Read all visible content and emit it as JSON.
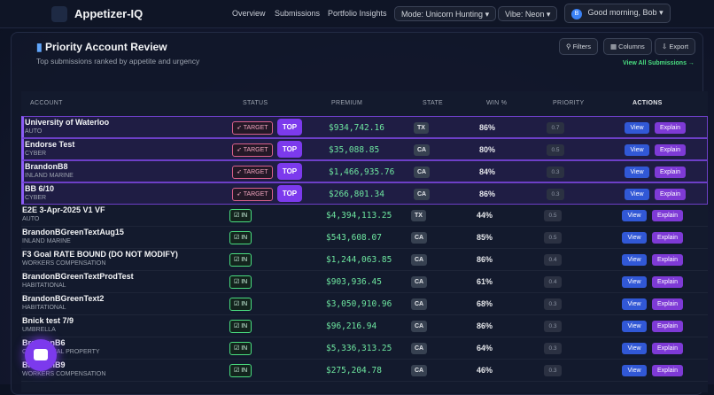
{
  "header": {
    "brand": "Appetizer-IQ",
    "nav": [
      "Overview",
      "Submissions",
      "Portfolio Insights"
    ],
    "mode": "Mode: Unicorn Hunting",
    "vibe": "Vibe: Neon",
    "avatar": "B",
    "greeting": "Good morning, Bob"
  },
  "panel": {
    "title": "Priority Account Review",
    "subtitle": "Top submissions ranked by appetite and urgency",
    "buttons": [
      "Filters",
      "Columns",
      "Export"
    ],
    "link": "View All Submissions →"
  },
  "table": {
    "columns": [
      "ACCOUNT",
      "STATUS",
      "PREMIUM",
      "STATE",
      "WIN %",
      "PRIORITY",
      "ACTIONS"
    ],
    "actions": [
      "View",
      "Explain"
    ],
    "rows": [
      {
        "account": "University of Waterloo",
        "line": "AUTO",
        "status": "TARGET",
        "flag": "TOP",
        "premium": "$934,742.16",
        "state": "TX",
        "win": "86%",
        "priority": "0.7"
      },
      {
        "account": "Endorse Test",
        "line": "CYBER",
        "status": "TARGET",
        "flag": "TOP",
        "premium": "$35,088.85",
        "state": "CA",
        "win": "80%",
        "priority": "0.5"
      },
      {
        "account": "BrandonB8",
        "line": "INLAND MARINE",
        "status": "TARGET",
        "flag": "TOP",
        "premium": "$1,466,935.76",
        "state": "CA",
        "win": "84%",
        "priority": "0.3"
      },
      {
        "account": "BB 6/10",
        "line": "CYBER",
        "status": "TARGET",
        "flag": "TOP",
        "premium": "$266,801.34",
        "state": "CA",
        "win": "86%",
        "priority": "0.3"
      },
      {
        "account": "E2E 3-Apr-2025 V1 VF",
        "line": "AUTO",
        "status": "IN",
        "premium": "$4,394,113.25",
        "state": "TX",
        "win": "44%",
        "priority": "0.5"
      },
      {
        "account": "BrandonBGreenTextAug15",
        "line": "INLAND MARINE",
        "status": "IN",
        "premium": "$543,608.07",
        "state": "CA",
        "win": "85%",
        "priority": "0.5"
      },
      {
        "account": "F3 Goal RATE BOUND (DO NOT MODIFY)",
        "line": "WORKERS COMPENSATION",
        "status": "IN",
        "premium": "$1,244,063.85",
        "state": "CA",
        "win": "86%",
        "priority": "0.4"
      },
      {
        "account": "BrandonBGreenTextProdTest",
        "line": "HABITATIONAL",
        "status": "IN",
        "premium": "$903,936.45",
        "state": "CA",
        "win": "61%",
        "priority": "0.4"
      },
      {
        "account": "BrandonBGreenText2",
        "line": "HABITATIONAL",
        "status": "IN",
        "premium": "$3,050,910.96",
        "state": "CA",
        "win": "68%",
        "priority": "0.3"
      },
      {
        "account": "Bnick test 7/9",
        "line": "UMBRELLA",
        "status": "IN",
        "premium": "$96,216.94",
        "state": "CA",
        "win": "86%",
        "priority": "0.3"
      },
      {
        "account": "BrandonB6",
        "line": "COMMERCIAL PROPERTY",
        "status": "IN",
        "premium": "$5,336,313.25",
        "state": "CA",
        "win": "64%",
        "priority": "0.3"
      },
      {
        "account": "BrandonB9",
        "line": "WORKERS COMPENSATION",
        "status": "IN",
        "premium": "$275,204.78",
        "state": "CA",
        "win": "46%",
        "priority": "0.3"
      }
    ]
  }
}
